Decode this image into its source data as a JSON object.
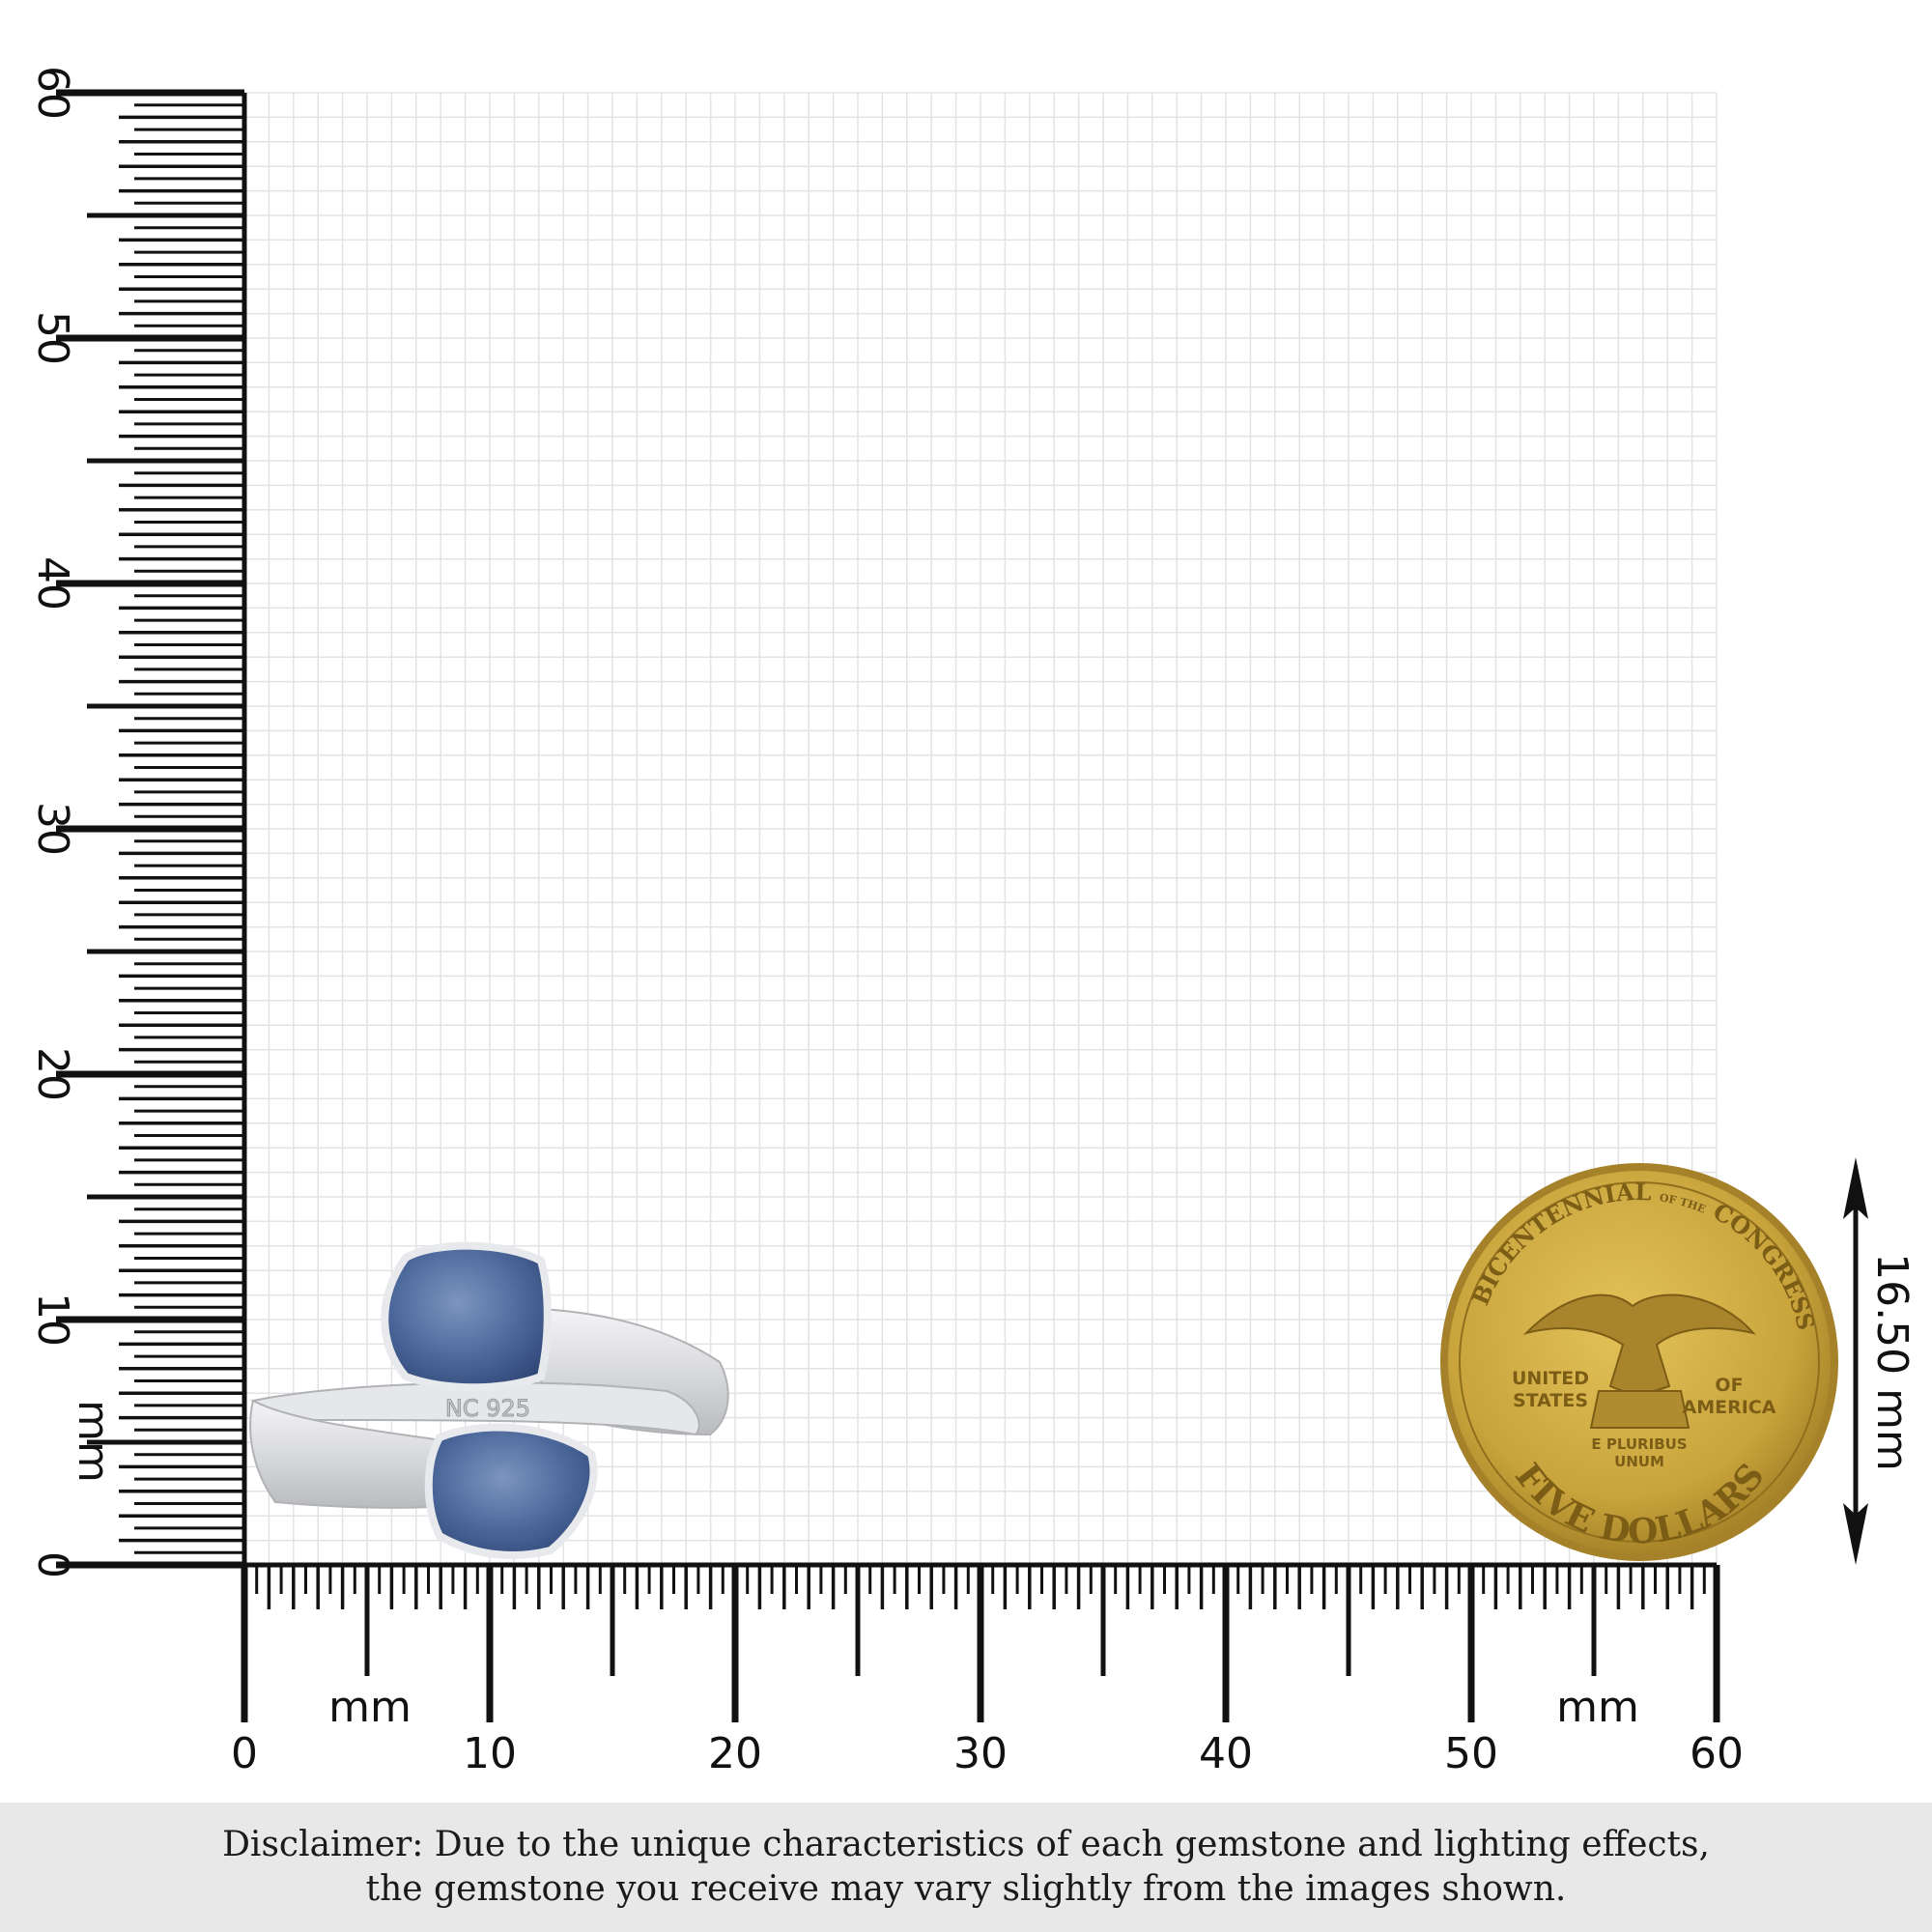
{
  "ruler": {
    "unit_label": "mm",
    "x_axis_labels": [
      "0",
      "10",
      "20",
      "30",
      "40",
      "50",
      "60"
    ],
    "y_axis_labels": [
      "0",
      "10",
      "20",
      "30",
      "40",
      "50",
      "60"
    ],
    "range_mm": [
      0,
      60
    ]
  },
  "ring": {
    "stamp": "NC 925",
    "stone_color": "#4a6699",
    "metal": "sterling silver"
  },
  "coin": {
    "top_text": "BICENTENNIAL",
    "of_the": "OF THE",
    "right_text": "CONGRESS",
    "left_mid": [
      "UNITED",
      "STATES"
    ],
    "right_mid": [
      "OF",
      "AMERICA"
    ],
    "motto": [
      "E PLURIBUS",
      "UNUM"
    ],
    "bottom_text": "FIVE DOLLARS",
    "color": "#c9a43c"
  },
  "measurement": {
    "label": "16.50 mm",
    "value_mm": 16.5
  },
  "disclaimer": {
    "line1": "Disclaimer: Due to the unique characteristics of each gemstone and lighting effects,",
    "line2": "the gemstone you receive may vary slightly from the images shown."
  }
}
